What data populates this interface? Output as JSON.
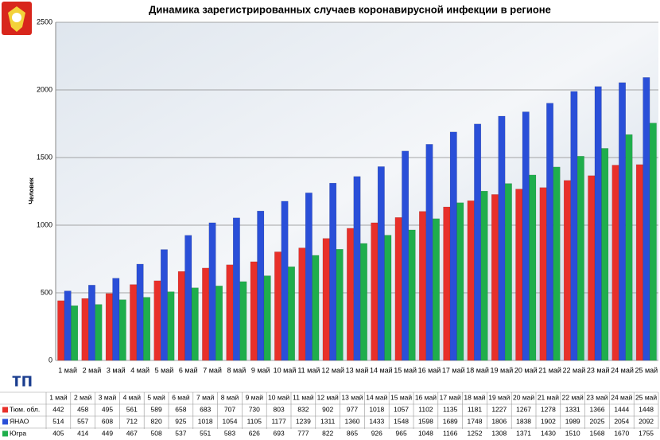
{
  "chart_data": {
    "type": "bar",
    "title": "Динамика зарегистрированных случаев коронавирусной инфекции в регионе",
    "y_label": "Человек",
    "logo": "тп",
    "categories": [
      "1 май",
      "2 май",
      "3 май",
      "4 май",
      "5 май",
      "6 май",
      "7 май",
      "8 май",
      "9 май",
      "10 май",
      "11 май",
      "12 май",
      "13 май",
      "14 май",
      "15 май",
      "16 май",
      "17 май",
      "18 май",
      "19 май",
      "20 май",
      "21 май",
      "22 май",
      "23 май",
      "24 май",
      "25 май"
    ],
    "series": [
      {
        "name": "Тюм. обл.",
        "color": "#e8302a",
        "values": [
          442,
          458,
          495,
          561,
          589,
          658,
          683,
          707,
          730,
          803,
          832,
          902,
          977,
          1018,
          1057,
          1102,
          1135,
          1181,
          1227,
          1267,
          1278,
          1331,
          1366,
          1444,
          1448
        ]
      },
      {
        "name": "ЯНАО",
        "color": "#2a4fd8",
        "values": [
          514,
          557,
          608,
          712,
          820,
          925,
          1018,
          1054,
          1105,
          1177,
          1239,
          1311,
          1360,
          1433,
          1548,
          1598,
          1689,
          1748,
          1806,
          1838,
          1902,
          1989,
          2025,
          2054,
          2092
        ]
      },
      {
        "name": "Югра",
        "color": "#1fae4c",
        "values": [
          405,
          414,
          449,
          467,
          508,
          537,
          551,
          583,
          626,
          693,
          777,
          822,
          865,
          926,
          965,
          1048,
          1166,
          1252,
          1308,
          1371,
          1430,
          1510,
          1568,
          1670,
          1755
        ]
      }
    ],
    "ylim": [
      0,
      2500
    ],
    "yticks": [
      0,
      500,
      1000,
      1500,
      2000,
      2500
    ],
    "grid": true
  }
}
